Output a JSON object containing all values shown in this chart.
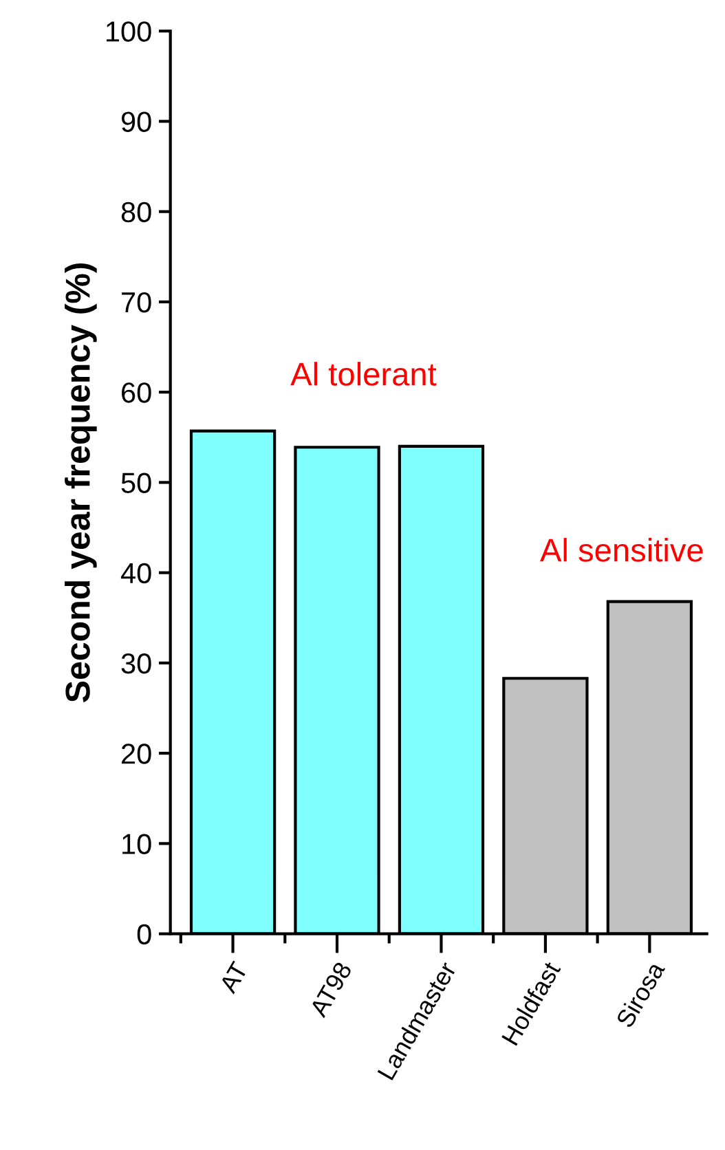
{
  "chart_data": {
    "type": "bar",
    "ylabel": "Second year frequency (%)",
    "categories": [
      "AT",
      "AT98",
      "Landmaster",
      "Holdfast",
      "Sirosa"
    ],
    "values": [
      55.7,
      53.9,
      54.0,
      28.3,
      36.8
    ],
    "colors": [
      "#80ffff",
      "#80ffff",
      "#80ffff",
      "#c0c0c0",
      "#c0c0c0"
    ],
    "ylim": [
      0,
      100
    ],
    "yticks": [
      0,
      10,
      20,
      30,
      40,
      50,
      60,
      70,
      80,
      90,
      100
    ],
    "grid": false,
    "annotations": [
      "Al tolerant",
      "Al sensitive"
    ]
  }
}
